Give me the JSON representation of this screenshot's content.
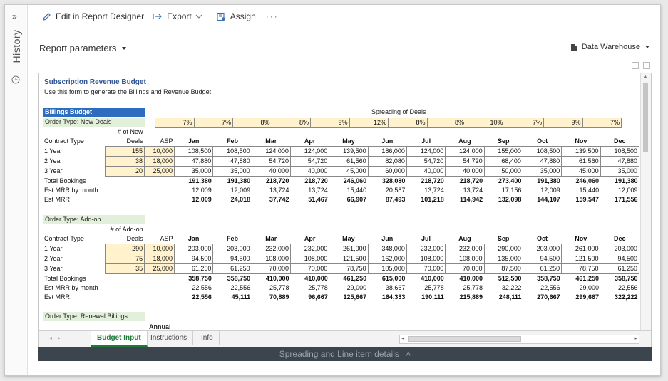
{
  "sidebar": {
    "label": "History"
  },
  "toolbar": {
    "edit_label": "Edit in Report Designer",
    "export_label": "Export",
    "assign_label": "Assign"
  },
  "params": {
    "label": "Report parameters"
  },
  "datasource": {
    "label": "Data Warehouse"
  },
  "sheet": {
    "title": "Subscription Revenue Budget",
    "subtitle": "Use this form to generate the Billings and Revenue Budget",
    "billings_label": "Billings Budget",
    "spreading_label": "Spreading of Deals",
    "pct": [
      "7%",
      "7%",
      "8%",
      "8%",
      "9%",
      "12%",
      "8%",
      "8%",
      "10%",
      "7%",
      "9%",
      "7%"
    ],
    "months": [
      "Jan",
      "Feb",
      "Mar",
      "Apr",
      "May",
      "Jun",
      "Jul",
      "Aug",
      "Sep",
      "Oct",
      "Nov",
      "Dec"
    ],
    "sections": [
      {
        "order_type": "Order Type: New Deals",
        "deals_hdr_1": "# of New",
        "deals_hdr_2": "Deals",
        "contract_type": "Contract Type",
        "asp": "ASP",
        "rows": [
          {
            "label": "1 Year",
            "deals": "155",
            "asp": "10,000",
            "v": [
              "108,500",
              "108,500",
              "124,000",
              "124,000",
              "139,500",
              "186,000",
              "124,000",
              "124,000",
              "155,000",
              "108,500",
              "139,500",
              "108,500"
            ]
          },
          {
            "label": "2 Year",
            "deals": "38",
            "asp": "18,000",
            "v": [
              "47,880",
              "47,880",
              "54,720",
              "54,720",
              "61,560",
              "82,080",
              "54,720",
              "54,720",
              "68,400",
              "47,880",
              "61,560",
              "47,880"
            ]
          },
          {
            "label": "3 Year",
            "deals": "20",
            "asp": "25,000",
            "v": [
              "35,000",
              "35,000",
              "40,000",
              "40,000",
              "45,000",
              "60,000",
              "40,000",
              "40,000",
              "50,000",
              "35,000",
              "45,000",
              "35,000"
            ]
          }
        ],
        "total_label": "Total Bookings",
        "total": [
          "191,380",
          "191,380",
          "218,720",
          "218,720",
          "246,060",
          "328,080",
          "218,720",
          "218,720",
          "273,400",
          "191,380",
          "246,060",
          "191,380"
        ],
        "mrr_month_label": "Est MRR by month",
        "mrr_month": [
          "12,009",
          "12,009",
          "13,724",
          "13,724",
          "15,440",
          "20,587",
          "13,724",
          "13,724",
          "17,156",
          "12,009",
          "15,440",
          "12,009"
        ],
        "mrr_label": "Est MRR",
        "mrr": [
          "12,009",
          "24,018",
          "37,742",
          "51,467",
          "66,907",
          "87,493",
          "101,218",
          "114,942",
          "132,098",
          "144,107",
          "159,547",
          "171,556"
        ]
      },
      {
        "order_type": "Order Type: Add-on",
        "deals_hdr_1": "# of Add-on",
        "deals_hdr_2": "Deals",
        "contract_type": "Contract Type",
        "asp": "ASP",
        "rows": [
          {
            "label": "1 Year",
            "deals": "290",
            "asp": "10,000",
            "v": [
              "203,000",
              "203,000",
              "232,000",
              "232,000",
              "261,000",
              "348,000",
              "232,000",
              "232,000",
              "290,000",
              "203,000",
              "261,000",
              "203,000"
            ]
          },
          {
            "label": "2 Year",
            "deals": "75",
            "asp": "18,000",
            "v": [
              "94,500",
              "94,500",
              "108,000",
              "108,000",
              "121,500",
              "162,000",
              "108,000",
              "108,000",
              "135,000",
              "94,500",
              "121,500",
              "94,500"
            ]
          },
          {
            "label": "3 Year",
            "deals": "35",
            "asp": "25,000",
            "v": [
              "61,250",
              "61,250",
              "70,000",
              "70,000",
              "78,750",
              "105,000",
              "70,000",
              "70,000",
              "87,500",
              "61,250",
              "78,750",
              "61,250"
            ]
          }
        ],
        "total_label": "Total Bookings",
        "total": [
          "358,750",
          "358,750",
          "410,000",
          "410,000",
          "461,250",
          "615,000",
          "410,000",
          "410,000",
          "512,500",
          "358,750",
          "461,250",
          "358,750"
        ],
        "mrr_month_label": "Est MRR by month",
        "mrr_month": [
          "22,556",
          "22,556",
          "25,778",
          "25,778",
          "29,000",
          "38,667",
          "25,778",
          "25,778",
          "32,222",
          "22,556",
          "29,000",
          "22,556"
        ],
        "mrr_label": "Est MRR",
        "mrr": [
          "22,556",
          "45,111",
          "70,889",
          "96,667",
          "125,667",
          "164,333",
          "190,111",
          "215,889",
          "248,111",
          "270,667",
          "299,667",
          "322,222"
        ]
      }
    ],
    "renewal_label": "Order Type: Renewal Billings",
    "annual_label": "Annual"
  },
  "tabs": [
    "Budget Input",
    "Instructions",
    "Info"
  ],
  "bottom_bar": {
    "label": "Spreading and Line item details"
  }
}
